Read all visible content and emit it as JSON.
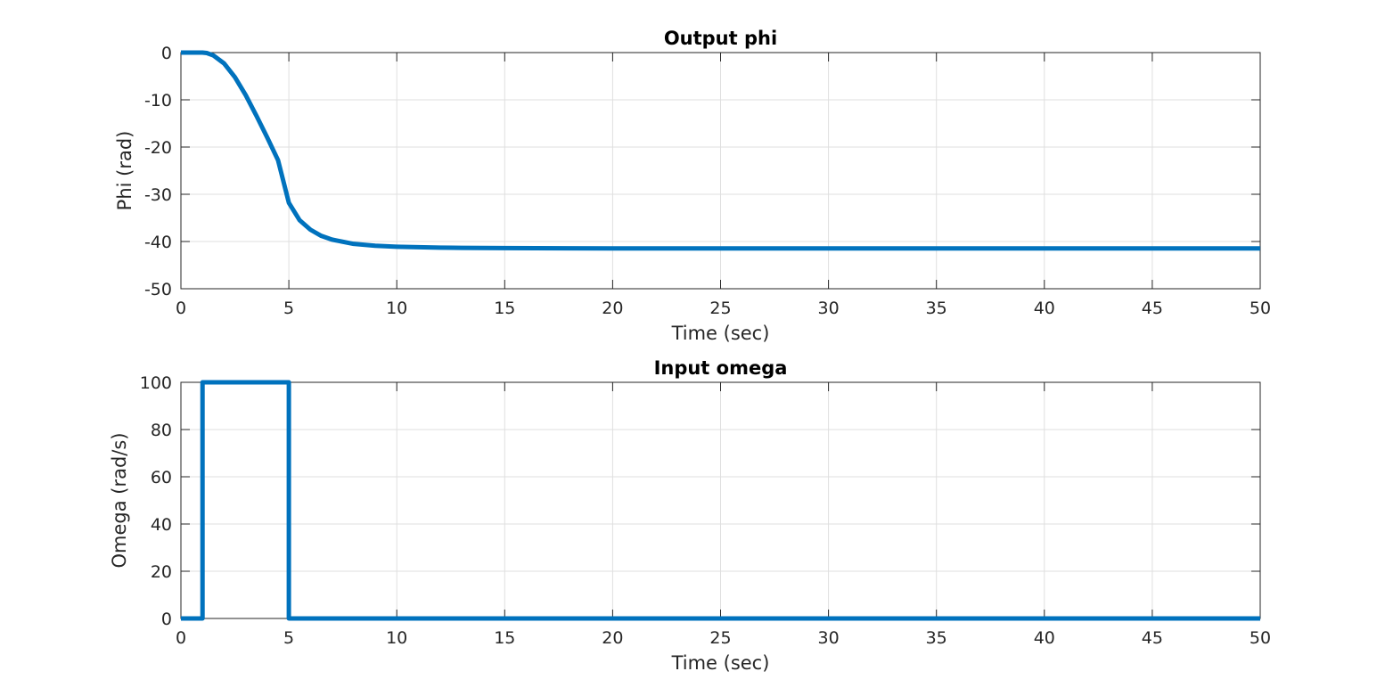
{
  "chart_data": [
    {
      "type": "line",
      "title": "Output phi",
      "xlabel": "Time (sec)",
      "ylabel": "Phi (rad)",
      "xlim": [
        0,
        50
      ],
      "ylim": [
        -50,
        0
      ],
      "xticks": [
        0,
        5,
        10,
        15,
        20,
        25,
        30,
        35,
        40,
        45,
        50
      ],
      "yticks": [
        0,
        -10,
        -20,
        -30,
        -40,
        -50
      ],
      "grid": true,
      "color": "#0072BD",
      "series": [
        {
          "x": [
            0,
            1,
            1.2,
            1.5,
            2,
            2.5,
            3,
            3.5,
            4,
            4.5,
            5,
            5.5,
            6,
            6.5,
            7,
            8,
            9,
            10,
            11,
            12,
            13,
            15,
            20,
            25,
            30,
            35,
            40,
            45,
            50
          ],
          "y": [
            0,
            0,
            -0.1,
            -0.6,
            -2.3,
            -5.2,
            -9.0,
            -13.4,
            -18.0,
            -22.8,
            -31.8,
            -35.5,
            -37.5,
            -38.8,
            -39.6,
            -40.5,
            -40.9,
            -41.1,
            -41.2,
            -41.3,
            -41.35,
            -41.4,
            -41.45,
            -41.45,
            -41.45,
            -41.45,
            -41.45,
            -41.45,
            -41.45
          ]
        }
      ]
    },
    {
      "type": "line",
      "title": "Input omega",
      "xlabel": "Time (sec)",
      "ylabel": "Omega (rad/s)",
      "xlim": [
        0,
        50
      ],
      "ylim": [
        0,
        100
      ],
      "xticks": [
        0,
        5,
        10,
        15,
        20,
        25,
        30,
        35,
        40,
        45,
        50
      ],
      "yticks": [
        100,
        80,
        60,
        40,
        20,
        0
      ],
      "grid": true,
      "color": "#0072BD",
      "series": [
        {
          "x": [
            0,
            1,
            1,
            5,
            5,
            50
          ],
          "y": [
            0,
            0,
            100,
            100,
            0,
            0
          ]
        }
      ]
    }
  ]
}
